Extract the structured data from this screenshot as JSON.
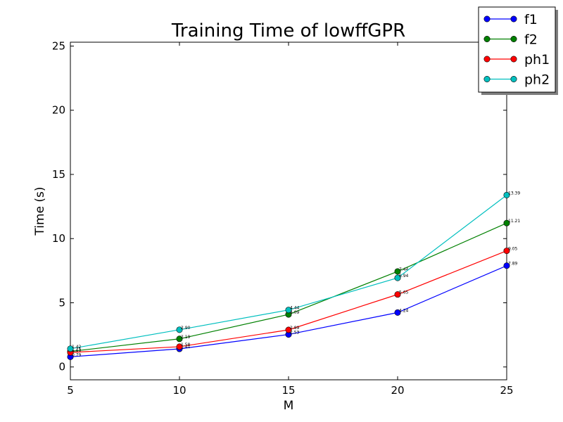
{
  "chart_data": {
    "type": "line",
    "title": "Training Time of lowffGPR",
    "xlabel": "M",
    "ylabel": "Time (s)",
    "x": [
      5,
      10,
      15,
      20,
      25
    ],
    "xlim": [
      5,
      25
    ],
    "ylim": [
      -1,
      25.3
    ],
    "xticks": [
      5,
      10,
      15,
      20,
      25
    ],
    "yticks": [
      0,
      5,
      10,
      15,
      20,
      25
    ],
    "grid": false,
    "legend": "top-right",
    "series": [
      {
        "name": "f1",
        "color": "#0000ff",
        "values": [
          0.79,
          1.41,
          2.53,
          4.24,
          7.89
        ],
        "labels": [
          "0.79",
          "1.41",
          "2.53",
          "4.24",
          "7.89"
        ]
      },
      {
        "name": "f2",
        "color": "#008000",
        "values": [
          1.21,
          2.19,
          4.09,
          7.44,
          11.21
        ],
        "labels": [
          "1.21",
          "2.19",
          "4.09",
          "7.44",
          "11.21"
        ]
      },
      {
        "name": "ph1",
        "color": "#ff0000",
        "values": [
          1.13,
          1.58,
          2.89,
          5.65,
          9.05
        ],
        "labels": [
          "1.13",
          "1.58",
          "2.89",
          "5.65",
          "9.05"
        ]
      },
      {
        "name": "ph2",
        "color": "#00bfbf",
        "values": [
          1.42,
          2.9,
          4.44,
          6.94,
          13.39
        ],
        "labels": [
          "1.42",
          "2.90",
          "4.44",
          "6.94",
          "13.39"
        ]
      }
    ]
  }
}
